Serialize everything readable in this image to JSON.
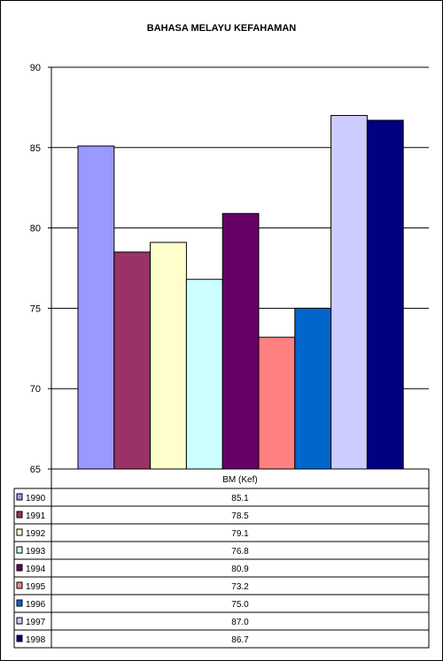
{
  "chart_data": {
    "type": "bar",
    "title": "BAHASA MELAYU KEFAHAMAN",
    "category_label": "BM (Kef)",
    "ylim": [
      65,
      90
    ],
    "yticks": [
      65,
      70,
      75,
      80,
      85,
      90
    ],
    "grid": true,
    "legend_placement": "data-table-below",
    "series": [
      {
        "name": "1990",
        "value": 85.1,
        "value_label": "85.1",
        "color": "#9999FF"
      },
      {
        "name": "1991",
        "value": 78.5,
        "value_label": "78.5",
        "color": "#993366"
      },
      {
        "name": "1992",
        "value": 79.1,
        "value_label": "79.1",
        "color": "#FFFFCC"
      },
      {
        "name": "1993",
        "value": 76.8,
        "value_label": "76.8",
        "color": "#CCFFFF"
      },
      {
        "name": "1994",
        "value": 80.9,
        "value_label": "80.9",
        "color": "#660066"
      },
      {
        "name": "1995",
        "value": 73.2,
        "value_label": "73.2",
        "color": "#FF8080"
      },
      {
        "name": "1996",
        "value": 75.0,
        "value_label": "75.0",
        "color": "#0066CC"
      },
      {
        "name": "1997",
        "value": 87.0,
        "value_label": "87.0",
        "color": "#CCCCFF"
      },
      {
        "name": "1998",
        "value": 86.7,
        "value_label": "86.7",
        "color": "#000080"
      }
    ]
  }
}
